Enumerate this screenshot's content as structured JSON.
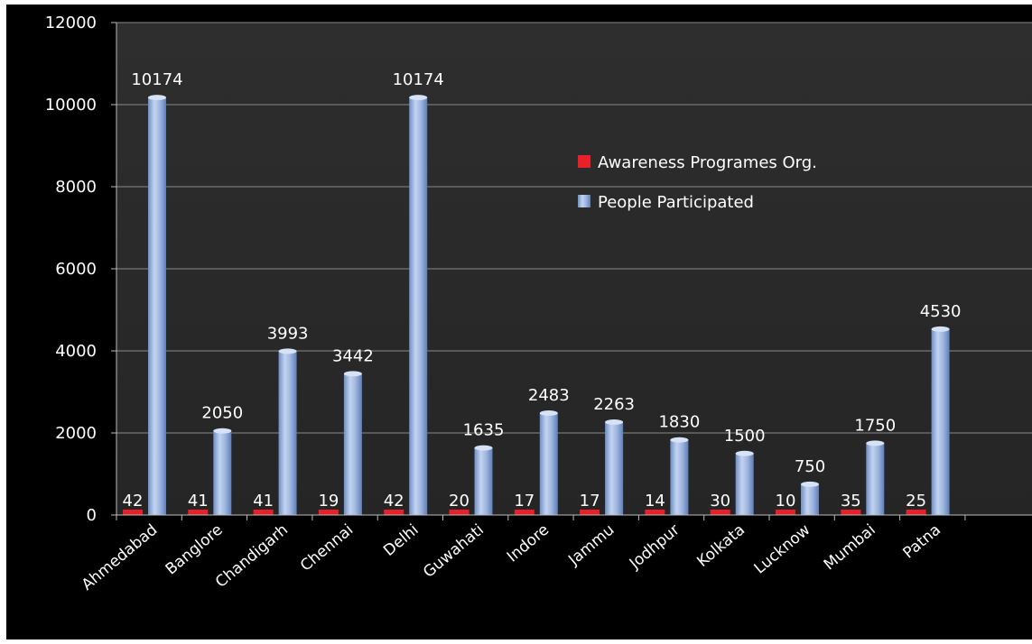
{
  "chart_data": {
    "type": "bar",
    "title": "",
    "xlabel": "",
    "ylabel": "",
    "ylim": [
      0,
      12000
    ],
    "yticks": [
      0,
      2000,
      4000,
      6000,
      8000,
      10000,
      12000
    ],
    "grid": true,
    "legend_position": "top-right",
    "categories": [
      "Ahmedabad",
      "Banglore",
      "Chandigarh",
      "Chennai",
      "Delhi",
      "Guwahati",
      "Indore",
      "Jammu",
      "Jodhpur",
      "Kolkata",
      "Lucknow",
      "Mumbai",
      "Patna"
    ],
    "series": [
      {
        "name": "Awareness Programes Org.",
        "color": "#e8202a",
        "values": [
          42,
          41,
          41,
          19,
          42,
          20,
          17,
          17,
          14,
          30,
          10,
          35,
          25
        ]
      },
      {
        "name": "People Participated",
        "color": "#8aa6d6",
        "values": [
          10174,
          2050,
          3993,
          3442,
          10174,
          1635,
          2483,
          2263,
          1830,
          1500,
          750,
          1750,
          4530
        ]
      }
    ]
  },
  "colors": {
    "background": "#000000",
    "plot_background": "#2b2b2b",
    "grid": "#8a8a8a",
    "text": "#ffffff"
  }
}
